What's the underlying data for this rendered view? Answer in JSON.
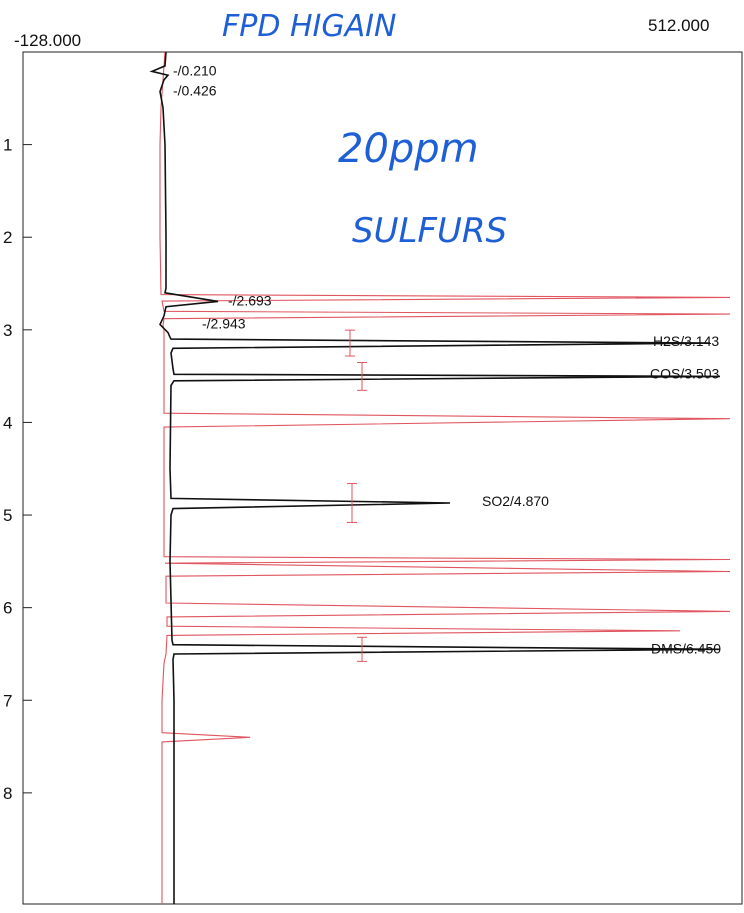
{
  "chart_data": {
    "type": "line",
    "orientation": "vertical-time-axis",
    "x_range_labels": {
      "left": "-128.000",
      "right": "512.000"
    },
    "ylim": [
      0,
      9.2
    ],
    "y_ticks": [
      1,
      2,
      3,
      4,
      5,
      6,
      7,
      8
    ],
    "grid": false,
    "annotations_handwritten": [
      "FPD HIGAIN",
      "20ppm",
      "SULFURS"
    ],
    "colors": {
      "main_trace": "#111111",
      "overlay_trace": "#e0555f",
      "handwriting": "#1f5fd6"
    },
    "peaks": [
      {
        "label": "-/0.210",
        "time": 0.21
      },
      {
        "label": "-/0.426",
        "time": 0.426
      },
      {
        "label": "-/2.693",
        "time": 2.693
      },
      {
        "label": "-/2.943",
        "time": 2.943
      },
      {
        "label": "H2S/3.143",
        "time": 3.143
      },
      {
        "label": "COS/3.503",
        "time": 3.503
      },
      {
        "label": "SO2/4.870",
        "time": 4.87
      },
      {
        "label": "DMS/6.450",
        "time": 6.45
      }
    ],
    "series": [
      {
        "points": [
          [
            0.0,
            26
          ],
          [
            0.15,
            25
          ],
          [
            0.21,
            12
          ],
          [
            0.25,
            28
          ],
          [
            0.3,
            24
          ],
          [
            0.426,
            20
          ],
          [
            0.6,
            23
          ],
          [
            1.0,
            25
          ],
          [
            2.0,
            26
          ],
          [
            2.55,
            26
          ],
          [
            2.6,
            25
          ],
          [
            2.693,
            78
          ],
          [
            2.75,
            26
          ],
          [
            2.85,
            24
          ],
          [
            2.943,
            20
          ],
          [
            3.03,
            28
          ],
          [
            3.08,
            30
          ],
          [
            3.1,
            31
          ],
          [
            3.143,
            570
          ],
          [
            3.2,
            33
          ],
          [
            3.25,
            31
          ],
          [
            3.42,
            33
          ],
          [
            3.48,
            34
          ],
          [
            3.503,
            580
          ],
          [
            3.55,
            34
          ],
          [
            3.6,
            31
          ],
          [
            4.5,
            30
          ],
          [
            4.82,
            31
          ],
          [
            4.87,
            310
          ],
          [
            4.93,
            33
          ],
          [
            5.0,
            31
          ],
          [
            5.5,
            30
          ],
          [
            6.35,
            32
          ],
          [
            6.4,
            33
          ],
          [
            6.45,
            580
          ],
          [
            6.5,
            34
          ],
          [
            6.56,
            33
          ],
          [
            7.0,
            34
          ],
          [
            8.0,
            34
          ],
          [
            9.2,
            34
          ]
        ]
      },
      {
        "points": [
          [
            0.0,
            25
          ],
          [
            0.3,
            23
          ],
          [
            0.6,
            21
          ],
          [
            1.0,
            20
          ],
          [
            2.0,
            20
          ],
          [
            2.62,
            21
          ],
          [
            2.65,
            590
          ],
          [
            2.69,
            22
          ],
          [
            2.8,
            24
          ],
          [
            2.83,
            590
          ],
          [
            2.88,
            24
          ],
          [
            2.95,
            23
          ],
          [
            3.0,
            24
          ],
          [
            3.9,
            24
          ],
          [
            3.96,
            590
          ],
          [
            4.05,
            24
          ],
          [
            5.45,
            24
          ],
          [
            5.48,
            590
          ],
          [
            5.52,
            25
          ],
          [
            5.58,
            400
          ],
          [
            5.61,
            590
          ],
          [
            5.66,
            26
          ],
          [
            5.95,
            26
          ],
          [
            6.04,
            590
          ],
          [
            6.1,
            27
          ],
          [
            6.2,
            27
          ],
          [
            6.25,
            540
          ],
          [
            6.3,
            27
          ],
          [
            6.5,
            26
          ],
          [
            6.6,
            24
          ],
          [
            7.0,
            22
          ],
          [
            7.35,
            22
          ],
          [
            7.4,
            110
          ],
          [
            7.45,
            22
          ],
          [
            8.0,
            22
          ],
          [
            9.2,
            22
          ]
        ]
      }
    ],
    "error_markers": [
      {
        "time": 3.143,
        "x": 210,
        "half_height": 0.14
      },
      {
        "time": 3.503,
        "x": 222,
        "half_height": 0.15
      },
      {
        "time": 4.87,
        "x": 212,
        "half_height": 0.21
      },
      {
        "time": 6.45,
        "x": 222,
        "half_height": 0.13
      }
    ]
  }
}
